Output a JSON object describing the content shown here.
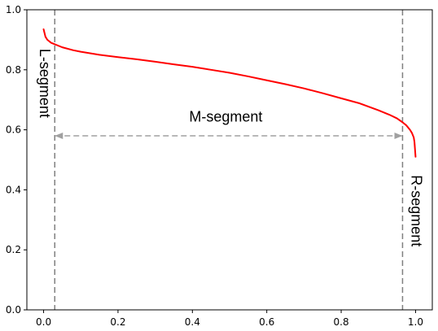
{
  "chart_data": {
    "type": "line",
    "title": "",
    "xlabel": "",
    "ylabel": "",
    "xlim": [
      -0.045,
      1.045
    ],
    "ylim": [
      0.0,
      1.0
    ],
    "x_ticks": [
      "0.0",
      "0.2",
      "0.4",
      "0.6",
      "0.8",
      "1.0"
    ],
    "y_ticks": [
      "0.0",
      "0.2",
      "0.4",
      "0.6",
      "0.8",
      "1.0"
    ],
    "grid": false,
    "legend": "none",
    "series": [
      {
        "color": "#ff0000",
        "x": [
          0.0,
          0.005,
          0.01,
          0.02,
          0.03,
          0.05,
          0.08,
          0.1,
          0.15,
          0.2,
          0.25,
          0.3,
          0.35,
          0.4,
          0.45,
          0.5,
          0.55,
          0.6,
          0.65,
          0.7,
          0.75,
          0.8,
          0.85,
          0.9,
          0.93,
          0.95,
          0.965,
          0.975,
          0.985,
          0.99,
          0.995,
          0.997,
          1.0
        ],
        "y": [
          0.935,
          0.91,
          0.9,
          0.89,
          0.885,
          0.875,
          0.865,
          0.86,
          0.85,
          0.842,
          0.835,
          0.827,
          0.818,
          0.81,
          0.8,
          0.79,
          0.778,
          0.765,
          0.752,
          0.738,
          0.722,
          0.705,
          0.688,
          0.665,
          0.65,
          0.638,
          0.625,
          0.615,
          0.6,
          0.59,
          0.575,
          0.56,
          0.51
        ]
      }
    ],
    "vlines": [
      {
        "x": 0.03,
        "color": "#808080",
        "style": "dashed"
      },
      {
        "x": 0.965,
        "color": "#808080",
        "style": "dashed"
      }
    ],
    "arrow": {
      "x_start": 0.03,
      "x_end": 0.965,
      "y": 0.58,
      "color": "#a0a0a0",
      "style": "dashed",
      "heads": "both"
    },
    "annotations": [
      {
        "text": "L-segment",
        "x": 0.0,
        "y": 0.755,
        "rotation": 90
      },
      {
        "text": "M-segment",
        "x": 0.49,
        "y": 0.64,
        "rotation": 0
      },
      {
        "text": "R-segment",
        "x": 1.0,
        "y": 0.33,
        "rotation": 90
      }
    ]
  }
}
